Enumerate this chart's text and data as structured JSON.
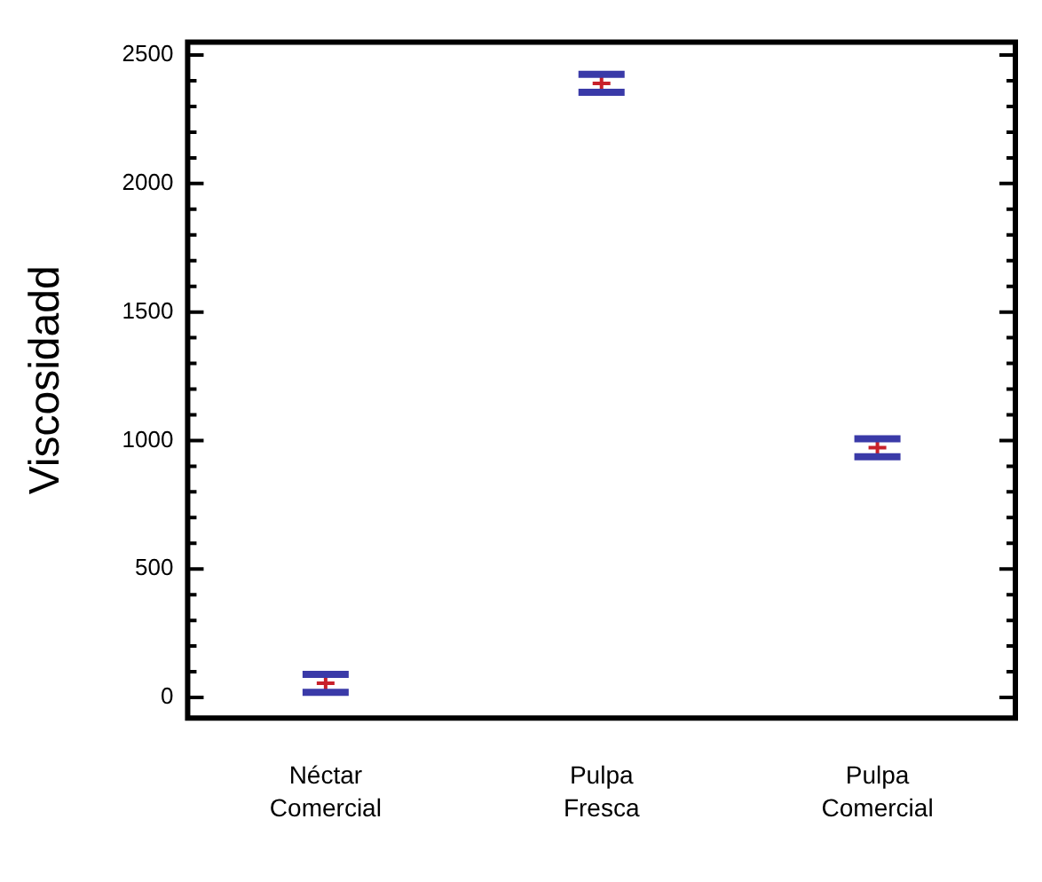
{
  "chart_data": {
    "type": "scatter",
    "ylabel": "Viscosidadd",
    "categories": [
      "Néctar Comercial",
      "Pulpa Fresca",
      "Pulpa Comercial"
    ],
    "series": [
      {
        "color": "#c8202a",
        "values": [
          55,
          2390,
          972
        ],
        "errors": [
          35,
          35,
          35
        ]
      }
    ],
    "marker": "cross",
    "ylim": [
      -80,
      2550
    ],
    "yticks": [
      0,
      {
        "value": 100,
        "label": null
      },
      {
        "value": 200,
        "label": null
      },
      {
        "value": 300,
        "label": null
      },
      {
        "value": 400,
        "label": null
      },
      500,
      {
        "value": 600,
        "label": null
      },
      {
        "value": 700,
        "label": null
      },
      {
        "value": 800,
        "label": null
      },
      {
        "value": 900,
        "label": null
      },
      1000,
      {
        "value": 1100,
        "label": null
      },
      {
        "value": 1200,
        "label": null
      },
      {
        "value": 1300,
        "label": null
      },
      {
        "value": 1400,
        "label": null
      },
      1500,
      {
        "value": 1600,
        "label": null
      },
      {
        "value": 1700,
        "label": null
      },
      {
        "value": 1800,
        "label": null
      },
      {
        "value": 1900,
        "label": null
      },
      2000,
      {
        "value": 2100,
        "label": null
      },
      {
        "value": 2200,
        "label": null
      },
      {
        "value": 2300,
        "label": null
      },
      {
        "value": 2400,
        "label": null
      },
      2500
    ],
    "grid": false,
    "legend": false
  }
}
